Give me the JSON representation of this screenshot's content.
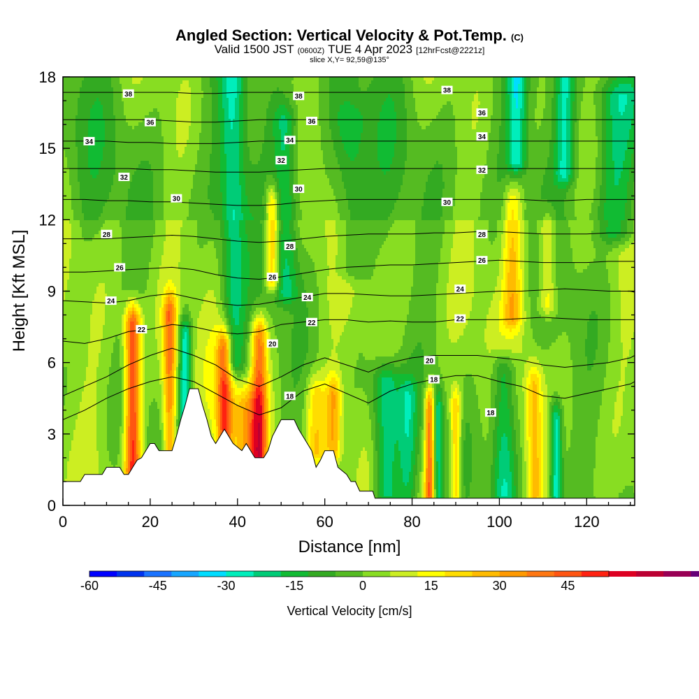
{
  "chart_data": {
    "type": "heatmap",
    "title": "Angled Section: Vertical Velocity & Pot.Temp.",
    "title_mark": "(C)",
    "subtitle_parts": [
      "Valid 1500 JST",
      "(0600Z)",
      "TUE 4 Apr 2023",
      "[12hrFcst@2221z]"
    ],
    "slice_label": "slice X,Y= 92,59@135°",
    "xlabel": "Distance [nm]",
    "ylabel": "Height [Kft MSL]",
    "xlim": [
      0,
      131
    ],
    "ylim": [
      0,
      18
    ],
    "x_ticks": [
      "0",
      "20",
      "40",
      "60",
      "80",
      "100",
      "120"
    ],
    "y_ticks": [
      "0",
      "3",
      "6",
      "9",
      "12",
      "15",
      "18"
    ],
    "colorbar": {
      "label": "Vertical Velocity [cm/s]",
      "range": [
        -60,
        54
      ],
      "step": 6,
      "ticks": [
        "-60",
        "-45",
        "-30",
        "-15",
        "0",
        "15",
        "30",
        "45"
      ],
      "colors": [
        "#0000ff",
        "#0033ee",
        "#1a73ff",
        "#17a6ff",
        "#00ddff",
        "#00eebb",
        "#00cc77",
        "#11bb33",
        "#33aa22",
        "#55bb22",
        "#88dd22",
        "#ccee22",
        "#ffff00",
        "#ffdd00",
        "#ffbb00",
        "#ff9900",
        "#ff7711",
        "#ff5511",
        "#ff2211",
        "#dd0022",
        "#bb0033",
        "#990055",
        "#660077"
      ]
    },
    "terrain_kft": [
      [
        0,
        1.0
      ],
      [
        4,
        1.0
      ],
      [
        5,
        1.3
      ],
      [
        9,
        1.3
      ],
      [
        10,
        1.6
      ],
      [
        13,
        1.6
      ],
      [
        14,
        1.3
      ],
      [
        15,
        1.3
      ],
      [
        16,
        1.6
      ],
      [
        17,
        1.9
      ],
      [
        18,
        2.0
      ],
      [
        19,
        2.3
      ],
      [
        20,
        2.6
      ],
      [
        21,
        2.6
      ],
      [
        22,
        2.3
      ],
      [
        25,
        2.3
      ],
      [
        26,
        2.9
      ],
      [
        27,
        3.6
      ],
      [
        28,
        4.2
      ],
      [
        29,
        4.9
      ],
      [
        31,
        4.9
      ],
      [
        32,
        4.2
      ],
      [
        33,
        3.6
      ],
      [
        34,
        2.9
      ],
      [
        35,
        2.6
      ],
      [
        36,
        2.9
      ],
      [
        37,
        3.2
      ],
      [
        38,
        2.9
      ],
      [
        39,
        2.6
      ],
      [
        41,
        2.3
      ],
      [
        42,
        2.6
      ],
      [
        43,
        2.3
      ],
      [
        44,
        2.0
      ],
      [
        46,
        2.0
      ],
      [
        47,
        2.3
      ],
      [
        48,
        2.9
      ],
      [
        50,
        3.6
      ],
      [
        53,
        3.6
      ],
      [
        54,
        3.2
      ],
      [
        55,
        2.9
      ],
      [
        56,
        2.6
      ],
      [
        57,
        2.3
      ],
      [
        58,
        1.6
      ],
      [
        59,
        1.9
      ],
      [
        60,
        2.3
      ],
      [
        62,
        2.3
      ],
      [
        63,
        1.6
      ],
      [
        65,
        1.3
      ],
      [
        66,
        1.0
      ],
      [
        67,
        1.0
      ],
      [
        68,
        0.6
      ],
      [
        71,
        0.6
      ],
      [
        71.5,
        0.3
      ],
      [
        131,
        0.3
      ]
    ],
    "theta_levels": [
      {
        "value": 18,
        "z": [
          3.6,
          4.0,
          4.5,
          4.9,
          5.2,
          5.4,
          5.2,
          4.7,
          4.2,
          3.8,
          4.1,
          4.8,
          5.1,
          4.7,
          4.3,
          4.8,
          5.1,
          5.3,
          5.45,
          5.45,
          5.2,
          5.0,
          4.6,
          4.5,
          4.7,
          4.9,
          5.1,
          5.2
        ]
      },
      {
        "value": 20,
        "z": [
          4.6,
          5.0,
          5.4,
          5.9,
          6.3,
          6.6,
          6.3,
          5.9,
          5.3,
          5.0,
          5.4,
          5.9,
          6.2,
          5.9,
          5.6,
          6.0,
          6.2,
          6.3,
          6.3,
          6.3,
          6.2,
          6.1,
          5.9,
          5.8,
          5.9,
          6.0,
          6.2,
          6.3
        ]
      },
      {
        "value": 22,
        "z": [
          6.9,
          6.8,
          7.0,
          7.3,
          7.4,
          7.6,
          7.5,
          7.3,
          7.2,
          7.3,
          7.6,
          7.7,
          7.8,
          7.8,
          7.7,
          7.75,
          7.7,
          7.7,
          7.8,
          7.8,
          7.8,
          7.85,
          7.9,
          7.85,
          7.8,
          7.8,
          7.8,
          7.8
        ]
      },
      {
        "value": 24,
        "z": [
          8.6,
          8.55,
          8.5,
          8.6,
          8.8,
          8.9,
          8.7,
          8.5,
          8.4,
          8.45,
          8.6,
          8.75,
          8.9,
          8.9,
          8.85,
          8.8,
          8.8,
          8.85,
          8.9,
          8.95,
          9.0,
          9.0,
          9.05,
          9.1,
          9.05,
          9.0,
          9.0,
          8.95
        ]
      },
      {
        "value": 26,
        "z": [
          9.8,
          9.8,
          9.85,
          9.9,
          9.95,
          10.0,
          9.9,
          9.7,
          9.55,
          9.5,
          9.6,
          9.75,
          9.9,
          10.0,
          10.05,
          10.1,
          10.1,
          10.15,
          10.2,
          10.25,
          10.3,
          10.25,
          10.2,
          10.2,
          10.2,
          10.25,
          10.25,
          10.25
        ]
      },
      {
        "value": 28,
        "z": [
          11.2,
          11.2,
          11.2,
          11.25,
          11.3,
          11.35,
          11.3,
          11.2,
          11.1,
          11.05,
          11.1,
          11.2,
          11.3,
          11.35,
          11.4,
          11.4,
          11.4,
          11.45,
          11.45,
          11.5,
          11.5,
          11.45,
          11.4,
          11.4,
          11.4,
          11.45,
          11.45,
          11.45
        ]
      },
      {
        "value": 30,
        "z": [
          12.85,
          12.85,
          12.8,
          12.8,
          12.75,
          12.75,
          12.7,
          12.65,
          12.6,
          12.6,
          12.65,
          12.75,
          12.8,
          12.85,
          12.85,
          12.85,
          12.85,
          12.85,
          12.85,
          12.85,
          12.85,
          12.85,
          12.8,
          12.8,
          12.85,
          12.85,
          12.85,
          12.85
        ]
      },
      {
        "value": 32,
        "z": [
          14.15,
          14.15,
          14.15,
          14.15,
          14.1,
          14.1,
          14.05,
          14.0,
          14.0,
          14.0,
          14.05,
          14.1,
          14.15,
          14.15,
          14.15,
          14.15,
          14.15,
          14.15,
          14.15,
          14.15,
          14.15,
          14.15,
          14.15,
          14.15,
          14.15,
          14.15,
          14.15,
          14.15
        ]
      },
      {
        "value": 34,
        "z": [
          15.3,
          15.3,
          15.3,
          15.25,
          15.25,
          15.2,
          15.2,
          15.2,
          15.25,
          15.3,
          15.3,
          15.3,
          15.3,
          15.3,
          15.3,
          15.3,
          15.3,
          15.3,
          15.3,
          15.3,
          15.3,
          15.3,
          15.3,
          15.3,
          15.3,
          15.3,
          15.3,
          15.3
        ]
      },
      {
        "value": 36,
        "z": [
          16.2,
          16.2,
          16.2,
          16.2,
          16.2,
          16.15,
          16.1,
          16.1,
          16.15,
          16.2,
          16.2,
          16.2,
          16.2,
          16.2,
          16.2,
          16.2,
          16.2,
          16.2,
          16.2,
          16.2,
          16.2,
          16.2,
          16.2,
          16.2,
          16.2,
          16.2,
          16.2,
          16.2
        ]
      },
      {
        "value": 38,
        "z": [
          17.35,
          17.35,
          17.35,
          17.35,
          17.35,
          17.35,
          17.3,
          17.3,
          17.35,
          17.35,
          17.35,
          17.35,
          17.35,
          17.35,
          17.35,
          17.35,
          17.35,
          17.35,
          17.35,
          17.35,
          17.35,
          17.35,
          17.35,
          17.35,
          17.35,
          17.35,
          17.35,
          17.35
        ]
      }
    ],
    "theta_x_step": 5,
    "contour_labels": [
      {
        "text": "38",
        "x": 15,
        "z": 17.3
      },
      {
        "text": "38",
        "x": 54,
        "z": 17.2
      },
      {
        "text": "38",
        "x": 88,
        "z": 17.45
      },
      {
        "text": "36",
        "x": 20,
        "z": 16.1
      },
      {
        "text": "36",
        "x": 57,
        "z": 16.15
      },
      {
        "text": "36",
        "x": 96,
        "z": 16.5
      },
      {
        "text": "34",
        "x": 6,
        "z": 15.3
      },
      {
        "text": "34",
        "x": 52,
        "z": 15.35
      },
      {
        "text": "34",
        "x": 96,
        "z": 15.5
      },
      {
        "text": "32",
        "x": 14,
        "z": 13.8
      },
      {
        "text": "32",
        "x": 50,
        "z": 14.5
      },
      {
        "text": "32",
        "x": 96,
        "z": 14.1
      },
      {
        "text": "30",
        "x": 26,
        "z": 12.9
      },
      {
        "text": "30",
        "x": 54,
        "z": 13.3
      },
      {
        "text": "30",
        "x": 88,
        "z": 12.75
      },
      {
        "text": "28",
        "x": 10,
        "z": 11.4
      },
      {
        "text": "28",
        "x": 52,
        "z": 10.9
      },
      {
        "text": "28",
        "x": 96,
        "z": 11.4
      },
      {
        "text": "26",
        "x": 13,
        "z": 10.0
      },
      {
        "text": "26",
        "x": 48,
        "z": 9.6
      },
      {
        "text": "26",
        "x": 96,
        "z": 10.3
      },
      {
        "text": "24",
        "x": 11,
        "z": 8.6
      },
      {
        "text": "24",
        "x": 56,
        "z": 8.75
      },
      {
        "text": "24",
        "x": 91,
        "z": 9.1
      },
      {
        "text": "22",
        "x": 18,
        "z": 7.4
      },
      {
        "text": "22",
        "x": 57,
        "z": 7.7
      },
      {
        "text": "22",
        "x": 91,
        "z": 7.85
      },
      {
        "text": "20",
        "x": 48,
        "z": 6.8
      },
      {
        "text": "20",
        "x": 84,
        "z": 6.1
      },
      {
        "text": "18",
        "x": 52,
        "z": 4.6
      },
      {
        "text": "18",
        "x": 85,
        "z": 5.3
      },
      {
        "text": "18",
        "x": 98,
        "z": 3.9
      }
    ],
    "velocity_features": [
      {
        "x": 16,
        "sx": 1.3,
        "zlo": 1.5,
        "zhi": 7.5,
        "w": 50
      },
      {
        "x": 24.5,
        "sx": 1.1,
        "zlo": 2.2,
        "zhi": 8.0,
        "w": 36
      },
      {
        "x": 28,
        "sx": 1.0,
        "zlo": 3.5,
        "zhi": 7.0,
        "w": -30
      },
      {
        "x": 37,
        "sx": 1.2,
        "zlo": 2.6,
        "zhi": 6.5,
        "w": 40
      },
      {
        "x": 39,
        "sx": 2.0,
        "zlo": 6.0,
        "zhi": 18,
        "w": -22
      },
      {
        "x": 42,
        "sx": 2.6,
        "zlo": 2.0,
        "zhi": 4.0,
        "w": 24
      },
      {
        "x": 45,
        "sx": 1.3,
        "zlo": 2.0,
        "zhi": 7.0,
        "w": 38
      },
      {
        "x": 48,
        "sx": 1.1,
        "zlo": 9.5,
        "zhi": 12.5,
        "w": 30
      },
      {
        "x": 51,
        "sx": 2.0,
        "zlo": 9.0,
        "zhi": 16.0,
        "w": -20
      },
      {
        "x": 58,
        "sx": 1.6,
        "zlo": 2.3,
        "zhi": 4.5,
        "w": 20
      },
      {
        "x": 62,
        "sx": 1.2,
        "zlo": 2.3,
        "zhi": 4.5,
        "w": 26
      },
      {
        "x": 66,
        "sx": 2.5,
        "zlo": 10.0,
        "zhi": 16.0,
        "w": -14
      },
      {
        "x": 74,
        "sx": 2.2,
        "zlo": 0.5,
        "zhi": 5.0,
        "w": -28
      },
      {
        "x": 79,
        "sx": 1.5,
        "zlo": 0.5,
        "zhi": 4.5,
        "w": -18
      },
      {
        "x": 84,
        "sx": 0.8,
        "zlo": 0.5,
        "zhi": 4.0,
        "w": 40
      },
      {
        "x": 86,
        "sx": 0.7,
        "zlo": 0.5,
        "zhi": 4.0,
        "w": -22
      },
      {
        "x": 90,
        "sx": 0.9,
        "zlo": 0.5,
        "zhi": 4.0,
        "w": 28
      },
      {
        "x": 101,
        "sx": 2.0,
        "zlo": 0.5,
        "zhi": 5.5,
        "w": -26
      },
      {
        "x": 103,
        "sx": 1.5,
        "zlo": 8.0,
        "zhi": 12.5,
        "w": 22
      },
      {
        "x": 104,
        "sx": 1.5,
        "zlo": 14.5,
        "zhi": 18,
        "w": -24
      },
      {
        "x": 108,
        "sx": 1.2,
        "zlo": 0.5,
        "zhi": 5.0,
        "w": 22
      },
      {
        "x": 111,
        "sx": 1.4,
        "zlo": 8.5,
        "zhi": 11.5,
        "w": 20
      },
      {
        "x": 113,
        "sx": 1.0,
        "zlo": 0.5,
        "zhi": 3.5,
        "w": -32
      },
      {
        "x": 115,
        "sx": 1.6,
        "zlo": 14.0,
        "zhi": 18,
        "w": -22
      },
      {
        "x": 127,
        "sx": 3.5,
        "zlo": 11.5,
        "zhi": 17.0,
        "w": -20
      }
    ]
  }
}
